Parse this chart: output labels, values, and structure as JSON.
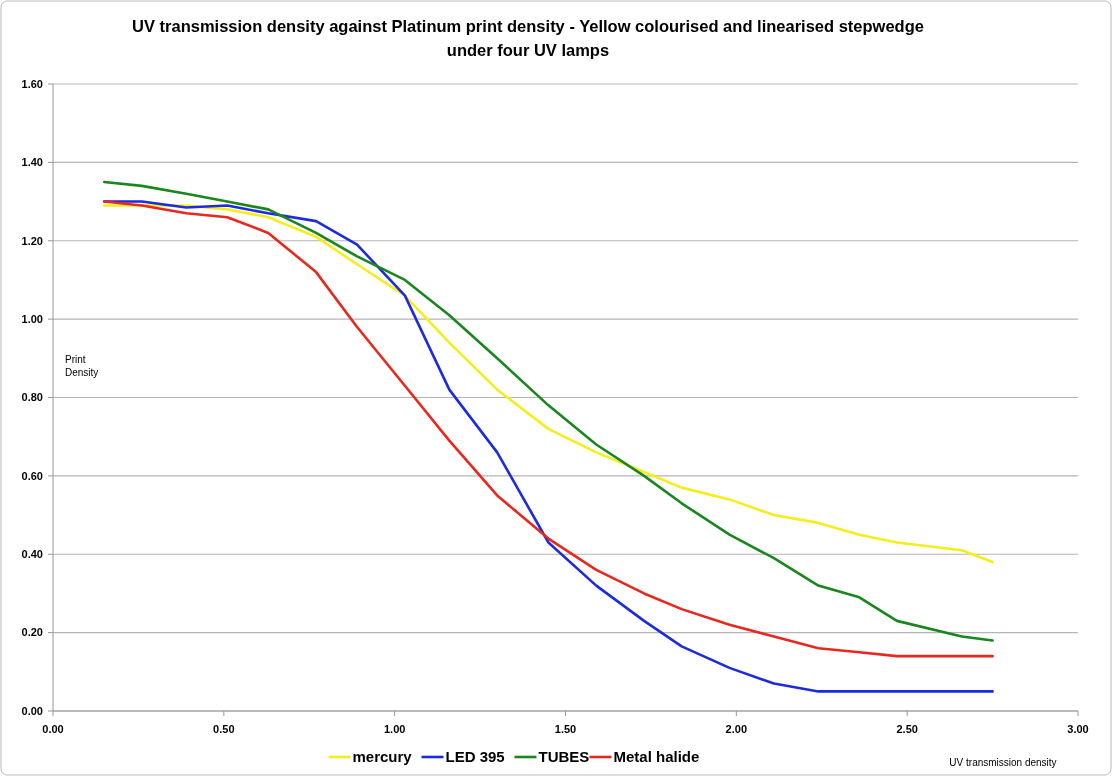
{
  "chart_data": {
    "type": "line",
    "title": "UV transmission density against Platinum print density - Yellow colourised and linearised stepwedge\nunder four UV lamps",
    "xlabel": "UV transmission density",
    "ylabel": "Print\nDensity",
    "x": [
      0.15,
      0.26,
      0.39,
      0.51,
      0.63,
      0.77,
      0.89,
      1.03,
      1.16,
      1.3,
      1.45,
      1.59,
      1.73,
      1.84,
      1.98,
      2.11,
      2.24,
      2.36,
      2.47,
      2.66,
      2.75
    ],
    "series": [
      {
        "name": "mercury",
        "color": "#f5ee1c",
        "values": [
          1.29,
          1.29,
          1.29,
          1.28,
          1.26,
          1.21,
          1.14,
          1.06,
          0.94,
          0.82,
          0.72,
          0.66,
          0.61,
          0.57,
          0.54,
          0.5,
          0.48,
          0.45,
          0.43,
          0.41,
          0.38
        ]
      },
      {
        "name": "LED 395",
        "color": "#1c2be0",
        "values": [
          1.3,
          1.3,
          1.285,
          1.29,
          1.27,
          1.25,
          1.19,
          1.06,
          0.82,
          0.66,
          0.43,
          0.32,
          0.23,
          0.165,
          0.11,
          0.07,
          0.05,
          0.05,
          0.05,
          0.05,
          0.05
        ]
      },
      {
        "name": "TUBES",
        "color": "#1a861e",
        "values": [
          1.35,
          1.34,
          1.32,
          1.3,
          1.28,
          1.22,
          1.16,
          1.1,
          1.01,
          0.9,
          0.78,
          0.68,
          0.6,
          0.53,
          0.45,
          0.39,
          0.32,
          0.29,
          0.23,
          0.19,
          0.18
        ]
      },
      {
        "name": "Metal halide",
        "color": "#e8281e",
        "values": [
          1.3,
          1.29,
          1.27,
          1.26,
          1.22,
          1.12,
          0.98,
          0.83,
          0.69,
          0.55,
          0.44,
          0.36,
          0.3,
          0.26,
          0.22,
          0.19,
          0.16,
          0.15,
          0.14,
          0.14,
          0.14
        ]
      }
    ],
    "xlim": [
      0,
      3
    ],
    "xticks": [
      {
        "value": 0,
        "label": "0.00"
      },
      {
        "value": 0.5,
        "label": "0.50"
      },
      {
        "value": 1,
        "label": "1.00"
      },
      {
        "value": 1.5,
        "label": "1.50"
      },
      {
        "value": 2,
        "label": "2.00"
      },
      {
        "value": 2.5,
        "label": "2.50"
      },
      {
        "value": 3,
        "label": "3.00"
      }
    ],
    "ylim": [
      0,
      1.6
    ],
    "yticks": [
      {
        "value": 0,
        "label": "0.00"
      },
      {
        "value": 0.2,
        "label": "0.20"
      },
      {
        "value": 0.4,
        "label": "0.40"
      },
      {
        "value": 0.6,
        "label": "0.60"
      },
      {
        "value": 0.8,
        "label": "0.80"
      },
      {
        "value": 1,
        "label": "1.00"
      },
      {
        "value": 1.2,
        "label": "1.20"
      },
      {
        "value": 1.4,
        "label": "1.40"
      },
      {
        "value": 1.6,
        "label": "1.60"
      }
    ],
    "grid": "y",
    "legend": "bottom",
    "marker": "none",
    "line_style": "solid"
  }
}
